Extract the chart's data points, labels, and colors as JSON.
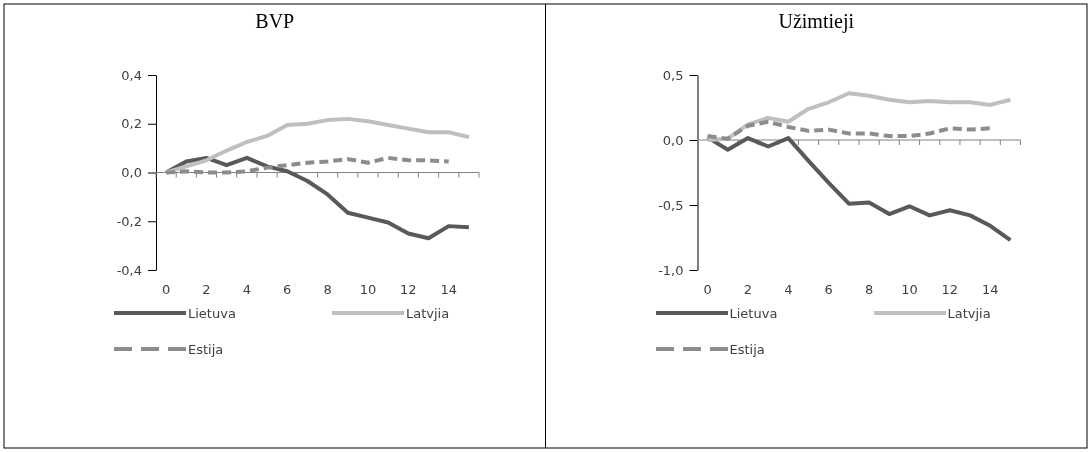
{
  "chart_data": [
    {
      "type": "line",
      "title": "BVP",
      "categories": [
        "0",
        null,
        "2",
        null,
        "4",
        null,
        "6",
        null,
        "8",
        null,
        "10",
        null,
        "12",
        null,
        "14",
        null
      ],
      "ylim": [
        -0.4,
        0.4
      ],
      "yticks": [
        {
          "value": -0.4,
          "label": "-0,4"
        },
        {
          "value": -0.2,
          "label": "-0,2"
        },
        {
          "value": 0,
          "label": "0,0"
        },
        {
          "value": 0.2,
          "label": "0,2"
        },
        {
          "value": 0.4,
          "label": "0,4"
        }
      ],
      "legend": "bottom",
      "series": [
        {
          "name": "Lietuva",
          "color": "#595959",
          "line_style": "solid",
          "values": [
            0,
            0.045,
            0.06,
            0.03,
            0.06,
            0.025,
            0.005,
            -0.035,
            -0.09,
            -0.165,
            -0.185,
            -0.205,
            -0.25,
            -0.27,
            -0.22,
            -0.225
          ]
        },
        {
          "name": "Latvjia",
          "color": "#bfbfbf",
          "line_style": "solid",
          "values": [
            0,
            0.025,
            0.05,
            0.09,
            0.125,
            0.15,
            0.195,
            0.2,
            0.215,
            0.22,
            0.21,
            0.195,
            0.18,
            0.165,
            0.165,
            0.145
          ]
        },
        {
          "name": "Estija",
          "color": "#8c8c8c",
          "line_style": "dashed",
          "values": [
            0,
            0.005,
            0,
            0,
            0.005,
            0.02,
            0.03,
            0.04,
            0.045,
            0.055,
            0.04,
            0.06,
            0.05,
            0.05,
            0.045,
            null
          ]
        }
      ]
    },
    {
      "type": "line",
      "title": "Užimtieji",
      "categories": [
        "0",
        null,
        "2",
        null,
        "4",
        null,
        "6",
        null,
        "8",
        null,
        "10",
        null,
        "12",
        null,
        "14",
        null
      ],
      "ylim": [
        -1.0,
        0.5
      ],
      "yticks": [
        {
          "value": -1.0,
          "label": "-1,0"
        },
        {
          "value": -0.5,
          "label": "-0,5"
        },
        {
          "value": 0,
          "label": "0,0"
        },
        {
          "value": 0.5,
          "label": "0,5"
        }
      ],
      "legend": "bottom",
      "series": [
        {
          "name": "Lietuva",
          "color": "#595959",
          "line_style": "solid",
          "values": [
            0.02,
            -0.075,
            0.015,
            -0.05,
            0.015,
            -0.16,
            -0.33,
            -0.49,
            -0.48,
            -0.57,
            -0.51,
            -0.58,
            -0.54,
            -0.58,
            -0.66,
            -0.77
          ]
        },
        {
          "name": "Latvjia",
          "color": "#bfbfbf",
          "line_style": "solid",
          "values": [
            0,
            0.01,
            0.12,
            0.17,
            0.14,
            0.24,
            0.29,
            0.36,
            0.34,
            0.31,
            0.29,
            0.3,
            0.29,
            0.29,
            0.27,
            0.31
          ]
        },
        {
          "name": "Estija",
          "color": "#8c8c8c",
          "line_style": "dashed",
          "values": [
            0.03,
            0.01,
            0.11,
            0.14,
            0.1,
            0.07,
            0.08,
            0.05,
            0.05,
            0.03,
            0.03,
            0.05,
            0.09,
            0.08,
            0.09,
            null
          ]
        }
      ]
    }
  ]
}
